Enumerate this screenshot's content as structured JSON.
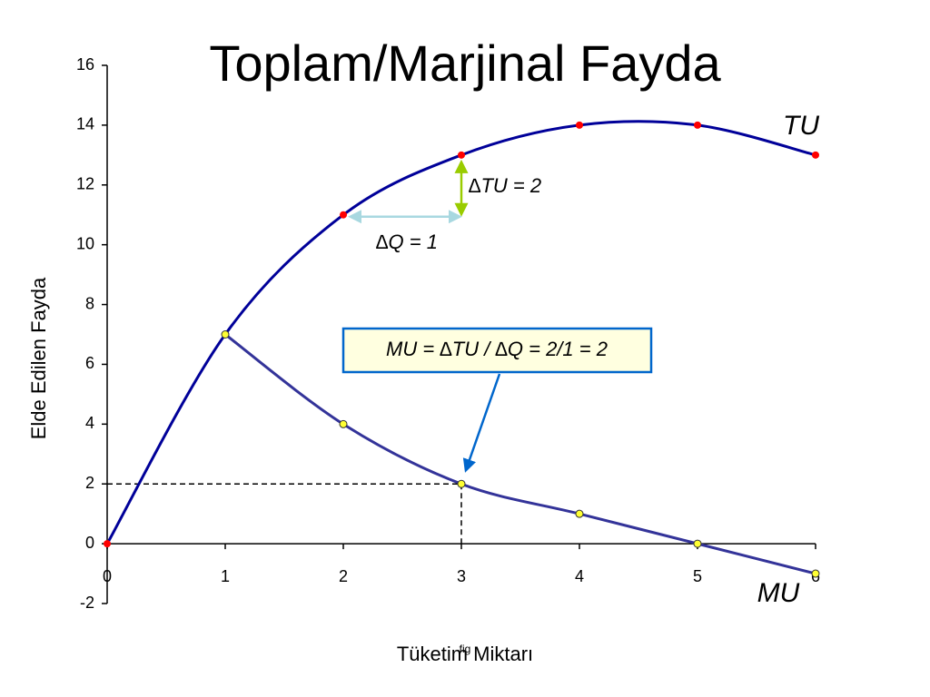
{
  "chart_data": {
    "type": "line",
    "title": "Toplam/Marjinal Fayda",
    "x_label": "Tüketim Miktarı",
    "y_label": "Elde Edilen Fayda",
    "x": [
      0,
      1,
      2,
      3,
      4,
      5,
      6
    ],
    "series": [
      {
        "name": "TU",
        "color": "#000099",
        "marker_color": "#ff0000",
        "values": [
          0,
          7,
          11,
          13,
          14,
          14,
          13
        ]
      },
      {
        "name": "MU",
        "color": "#333399",
        "marker_color": "#ffff33",
        "values": [
          null,
          7,
          4,
          2,
          1,
          0,
          -1
        ]
      }
    ],
    "xlim": [
      0,
      6
    ],
    "xticks": [
      0,
      1,
      2,
      3,
      4,
      5,
      6
    ],
    "ylim": [
      -2,
      16
    ],
    "yticks": [
      -2,
      0,
      2,
      4,
      6,
      8,
      10,
      12,
      14,
      16
    ],
    "annotations": [
      "∆TU = 2",
      "∆Q = 1",
      "MU = ∆TU / ∆Q = 2/1 = 2",
      "fig"
    ]
  }
}
